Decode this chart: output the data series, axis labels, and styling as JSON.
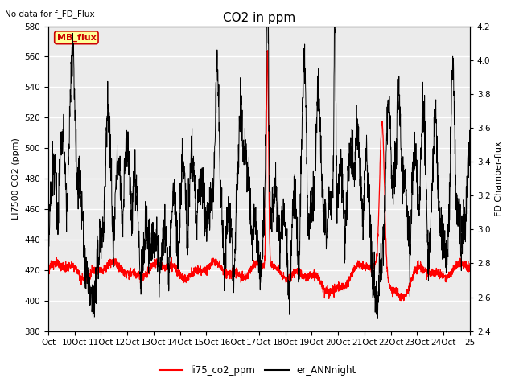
{
  "title": "CO2 in ppm",
  "top_label": "No data for f_FD_Flux",
  "ylabel_left": "LI7500 CO2 (ppm)",
  "ylabel_right": "FD Chamber-flux",
  "ylim_left": [
    380,
    580
  ],
  "ylim_right": [
    2.4,
    4.2
  ],
  "yticks_left": [
    380,
    400,
    420,
    440,
    460,
    480,
    500,
    520,
    540,
    560,
    580
  ],
  "yticks_right": [
    2.4,
    2.6,
    2.8,
    3.0,
    3.2,
    3.4,
    3.6,
    3.8,
    4.0,
    4.2
  ],
  "xtick_labels": [
    "Oct",
    "10Oct",
    "11Oct",
    "12Oct",
    "13Oct",
    "14Oct",
    "15Oct",
    "16Oct",
    "17Oct",
    "18Oct",
    "19Oct",
    "20Oct",
    "21Oct",
    "22Oct",
    "23Oct",
    "24Oct",
    "25"
  ],
  "legend_entries": [
    "li75_co2_ppm",
    "er_ANNnight"
  ],
  "line_color_red": "#ff0000",
  "line_color_black": "#000000",
  "plot_bg_color": "#ebebeb",
  "mb_flux_box_color": "#ffff99",
  "mb_flux_text_color": "#cc0000",
  "grid_color": "#ffffff",
  "title_fontsize": 11,
  "label_fontsize": 8,
  "tick_fontsize": 7.5
}
